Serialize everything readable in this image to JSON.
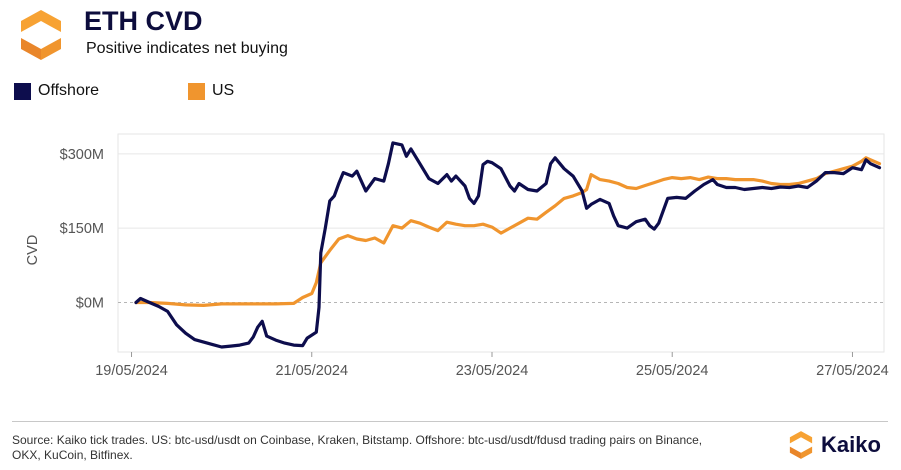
{
  "header": {
    "title": "ETH CVD",
    "subtitle": "Positive indicates net buying"
  },
  "legend": [
    {
      "label": "Offshore",
      "color": "#0d0d4d"
    },
    {
      "label": "US",
      "color": "#f0952e"
    }
  ],
  "footer": {
    "source": "Source: Kaiko tick trades. US: btc-usd/usdt on Coinbase, Kraken, Bitstamp. Offshore: btc-usd/usdt/fdusd trading pairs on Binance, OKX, KuCoin, Bitfinex.",
    "brand": "Kaiko",
    "brand_icon": "kaiko-logo-icon"
  },
  "chart_data": {
    "type": "line",
    "title": "ETH CVD",
    "subtitle": "Positive indicates net buying",
    "ylabel": "CVD",
    "xlabel": "",
    "ylim": [
      -100,
      340
    ],
    "xlim": [
      18.85,
      27.35
    ],
    "yticks": [
      0,
      150,
      300
    ],
    "ytick_labels": [
      "$0M",
      "$150M",
      "$300M"
    ],
    "xticks": [
      19,
      21,
      23,
      25,
      27
    ],
    "xtick_labels": [
      "19/05/2024",
      "21/05/2024",
      "23/05/2024",
      "25/05/2024",
      "27/05/2024"
    ],
    "x_unit": "day of May 2024",
    "y_unit": "USD millions",
    "zero_line": "dashed",
    "grid": "horizontal",
    "legend_position": "top-left",
    "series": [
      {
        "name": "Offshore",
        "color": "#0d0d4d",
        "points": [
          [
            19.05,
            0
          ],
          [
            19.1,
            8
          ],
          [
            19.2,
            0
          ],
          [
            19.3,
            -8
          ],
          [
            19.4,
            -18
          ],
          [
            19.5,
            -45
          ],
          [
            19.6,
            -62
          ],
          [
            19.7,
            -75
          ],
          [
            19.8,
            -80
          ],
          [
            19.9,
            -85
          ],
          [
            20.0,
            -90
          ],
          [
            20.1,
            -88
          ],
          [
            20.2,
            -86
          ],
          [
            20.3,
            -82
          ],
          [
            20.35,
            -70
          ],
          [
            20.4,
            -50
          ],
          [
            20.45,
            -38
          ],
          [
            20.5,
            -68
          ],
          [
            20.6,
            -76
          ],
          [
            20.7,
            -82
          ],
          [
            20.8,
            -86
          ],
          [
            20.9,
            -87
          ],
          [
            20.95,
            -72
          ],
          [
            21.05,
            -60
          ],
          [
            21.08,
            -10
          ],
          [
            21.1,
            100
          ],
          [
            21.15,
            150
          ],
          [
            21.2,
            205
          ],
          [
            21.25,
            215
          ],
          [
            21.3,
            240
          ],
          [
            21.35,
            262
          ],
          [
            21.45,
            255
          ],
          [
            21.5,
            265
          ],
          [
            21.6,
            225
          ],
          [
            21.7,
            250
          ],
          [
            21.8,
            245
          ],
          [
            21.85,
            280
          ],
          [
            21.9,
            322
          ],
          [
            22.0,
            318
          ],
          [
            22.05,
            295
          ],
          [
            22.1,
            310
          ],
          [
            22.2,
            280
          ],
          [
            22.3,
            250
          ],
          [
            22.4,
            240
          ],
          [
            22.5,
            258
          ],
          [
            22.55,
            245
          ],
          [
            22.6,
            255
          ],
          [
            22.7,
            235
          ],
          [
            22.75,
            210
          ],
          [
            22.8,
            200
          ],
          [
            22.85,
            215
          ],
          [
            22.9,
            278
          ],
          [
            22.95,
            285
          ],
          [
            23.0,
            282
          ],
          [
            23.1,
            270
          ],
          [
            23.2,
            235
          ],
          [
            23.25,
            225
          ],
          [
            23.3,
            240
          ],
          [
            23.4,
            228
          ],
          [
            23.5,
            225
          ],
          [
            23.6,
            240
          ],
          [
            23.65,
            280
          ],
          [
            23.7,
            292
          ],
          [
            23.8,
            270
          ],
          [
            23.9,
            255
          ],
          [
            24.0,
            225
          ],
          [
            24.05,
            190
          ],
          [
            24.1,
            198
          ],
          [
            24.2,
            208
          ],
          [
            24.3,
            200
          ],
          [
            24.35,
            175
          ],
          [
            24.4,
            155
          ],
          [
            24.5,
            150
          ],
          [
            24.6,
            163
          ],
          [
            24.7,
            168
          ],
          [
            24.75,
            155
          ],
          [
            24.8,
            148
          ],
          [
            24.85,
            160
          ],
          [
            24.9,
            185
          ],
          [
            24.95,
            210
          ],
          [
            25.05,
            212
          ],
          [
            25.15,
            210
          ],
          [
            25.25,
            225
          ],
          [
            25.35,
            238
          ],
          [
            25.45,
            248
          ],
          [
            25.5,
            238
          ],
          [
            25.6,
            232
          ],
          [
            25.7,
            232
          ],
          [
            25.8,
            228
          ],
          [
            25.9,
            230
          ],
          [
            26.0,
            232
          ],
          [
            26.1,
            230
          ],
          [
            26.2,
            233
          ],
          [
            26.3,
            232
          ],
          [
            26.4,
            235
          ],
          [
            26.5,
            232
          ],
          [
            26.6,
            245
          ],
          [
            26.7,
            262
          ],
          [
            26.8,
            262
          ],
          [
            26.9,
            260
          ],
          [
            27.0,
            272
          ],
          [
            27.1,
            268
          ],
          [
            27.15,
            288
          ],
          [
            27.2,
            280
          ],
          [
            27.3,
            272
          ]
        ]
      },
      {
        "name": "US",
        "color": "#f0952e",
        "points": [
          [
            19.05,
            0
          ],
          [
            19.2,
            0
          ],
          [
            19.4,
            -2
          ],
          [
            19.6,
            -5
          ],
          [
            19.8,
            -6
          ],
          [
            20.0,
            -3
          ],
          [
            20.2,
            -3
          ],
          [
            20.4,
            -3
          ],
          [
            20.6,
            -3
          ],
          [
            20.8,
            -2
          ],
          [
            20.9,
            10
          ],
          [
            21.0,
            18
          ],
          [
            21.05,
            40
          ],
          [
            21.1,
            80
          ],
          [
            21.2,
            105
          ],
          [
            21.3,
            128
          ],
          [
            21.4,
            135
          ],
          [
            21.5,
            128
          ],
          [
            21.6,
            125
          ],
          [
            21.7,
            130
          ],
          [
            21.8,
            120
          ],
          [
            21.9,
            155
          ],
          [
            22.0,
            150
          ],
          [
            22.1,
            165
          ],
          [
            22.2,
            160
          ],
          [
            22.3,
            152
          ],
          [
            22.4,
            145
          ],
          [
            22.5,
            162
          ],
          [
            22.6,
            158
          ],
          [
            22.7,
            155
          ],
          [
            22.8,
            155
          ],
          [
            22.9,
            158
          ],
          [
            23.0,
            152
          ],
          [
            23.1,
            140
          ],
          [
            23.2,
            150
          ],
          [
            23.3,
            160
          ],
          [
            23.4,
            170
          ],
          [
            23.5,
            168
          ],
          [
            23.6,
            182
          ],
          [
            23.7,
            195
          ],
          [
            23.8,
            210
          ],
          [
            23.9,
            215
          ],
          [
            24.0,
            222
          ],
          [
            24.05,
            228
          ],
          [
            24.1,
            258
          ],
          [
            24.2,
            248
          ],
          [
            24.3,
            245
          ],
          [
            24.4,
            240
          ],
          [
            24.5,
            232
          ],
          [
            24.6,
            230
          ],
          [
            24.7,
            236
          ],
          [
            24.8,
            242
          ],
          [
            24.9,
            248
          ],
          [
            25.0,
            252
          ],
          [
            25.1,
            250
          ],
          [
            25.2,
            252
          ],
          [
            25.3,
            248
          ],
          [
            25.4,
            253
          ],
          [
            25.5,
            250
          ],
          [
            25.6,
            250
          ],
          [
            25.7,
            248
          ],
          [
            25.8,
            248
          ],
          [
            25.9,
            248
          ],
          [
            26.0,
            245
          ],
          [
            26.1,
            240
          ],
          [
            26.2,
            238
          ],
          [
            26.3,
            238
          ],
          [
            26.4,
            240
          ],
          [
            26.5,
            245
          ],
          [
            26.6,
            250
          ],
          [
            26.7,
            260
          ],
          [
            26.8,
            265
          ],
          [
            26.9,
            270
          ],
          [
            27.0,
            275
          ],
          [
            27.1,
            285
          ],
          [
            27.15,
            292
          ],
          [
            27.3,
            280
          ]
        ]
      }
    ]
  }
}
